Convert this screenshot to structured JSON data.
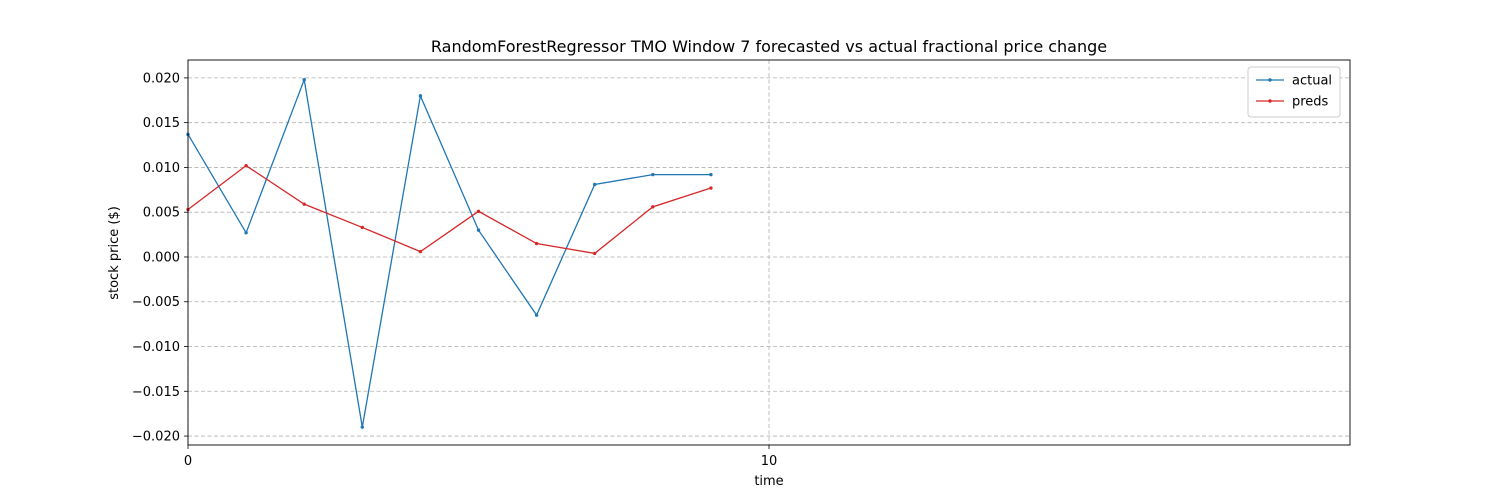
{
  "chart_data": {
    "type": "line",
    "title": "RandomForestRegressor TMO Window 7 forecasted vs actual fractional price change",
    "xlabel": "time",
    "ylabel": "stock price ($)",
    "xlim": [
      0,
      20
    ],
    "ylim": [
      -0.021,
      0.022
    ],
    "x_ticks": [
      0,
      10
    ],
    "y_ticks": [
      -0.02,
      -0.015,
      -0.01,
      -0.005,
      0.0,
      0.005,
      0.01,
      0.015,
      0.02
    ],
    "y_tick_labels": [
      "−0.020",
      "−0.015",
      "−0.010",
      "−0.005",
      "0.000",
      "0.005",
      "0.010",
      "0.015",
      "0.020"
    ],
    "grid": true,
    "legend_position": "top-right",
    "x": [
      0,
      1,
      2,
      3,
      4,
      5,
      6,
      7,
      8,
      9
    ],
    "series": [
      {
        "name": "actual",
        "color": "#1f77b4",
        "values": [
          0.0137,
          0.0027,
          0.0198,
          -0.019,
          0.018,
          0.003,
          -0.0065,
          0.0081,
          0.0092,
          0.0092
        ]
      },
      {
        "name": "preds",
        "color": "#d62728",
        "values": [
          0.0053,
          0.0102,
          0.0059,
          0.0033,
          0.0006,
          0.0051,
          0.0015,
          0.0004,
          0.0056,
          0.0077
        ]
      }
    ]
  }
}
